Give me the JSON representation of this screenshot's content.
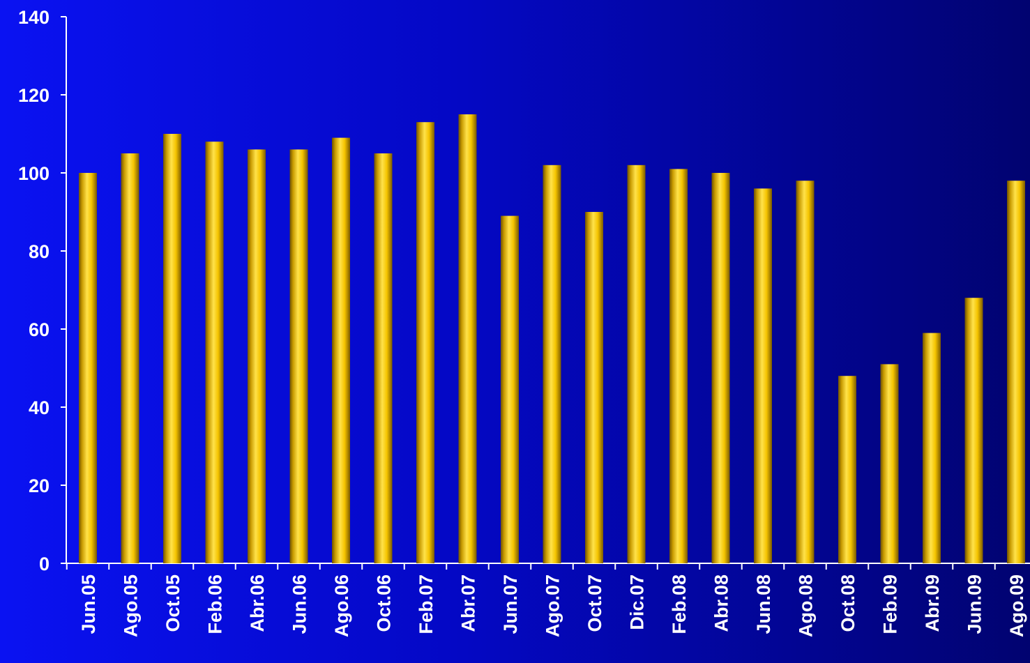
{
  "chart_data": {
    "type": "bar",
    "categories": [
      "Jun.05",
      "Ago.05",
      "Oct.05",
      "Feb.06",
      "Abr.06",
      "Jun.06",
      "Ago.06",
      "Oct.06",
      "Feb.07",
      "Abr.07",
      "Jun.07",
      "Ago.07",
      "Oct.07",
      "Dic.07",
      "Feb.08",
      "Abr.08",
      "Jun.08",
      "Ago.08",
      "Oct.08",
      "Feb.09",
      "Abr.09",
      "Jun.09",
      "Ago.09"
    ],
    "values": [
      100,
      105,
      110,
      108,
      106,
      106,
      109,
      105,
      113,
      115,
      89,
      102,
      90,
      102,
      101,
      100,
      96,
      98,
      48,
      51,
      59,
      68,
      98
    ],
    "ylim": [
      0,
      140
    ],
    "yticks": [
      0,
      20,
      40,
      60,
      80,
      100,
      120,
      140
    ],
    "title": "",
    "xlabel": "",
    "ylabel": "",
    "grid": false,
    "legend": "none",
    "colors": {
      "bar_light": "#ffe24a",
      "bar_mid": "#f5c400",
      "bar_dark": "#6e5200",
      "axis": "#ffffff",
      "text": "#ffffff"
    }
  }
}
